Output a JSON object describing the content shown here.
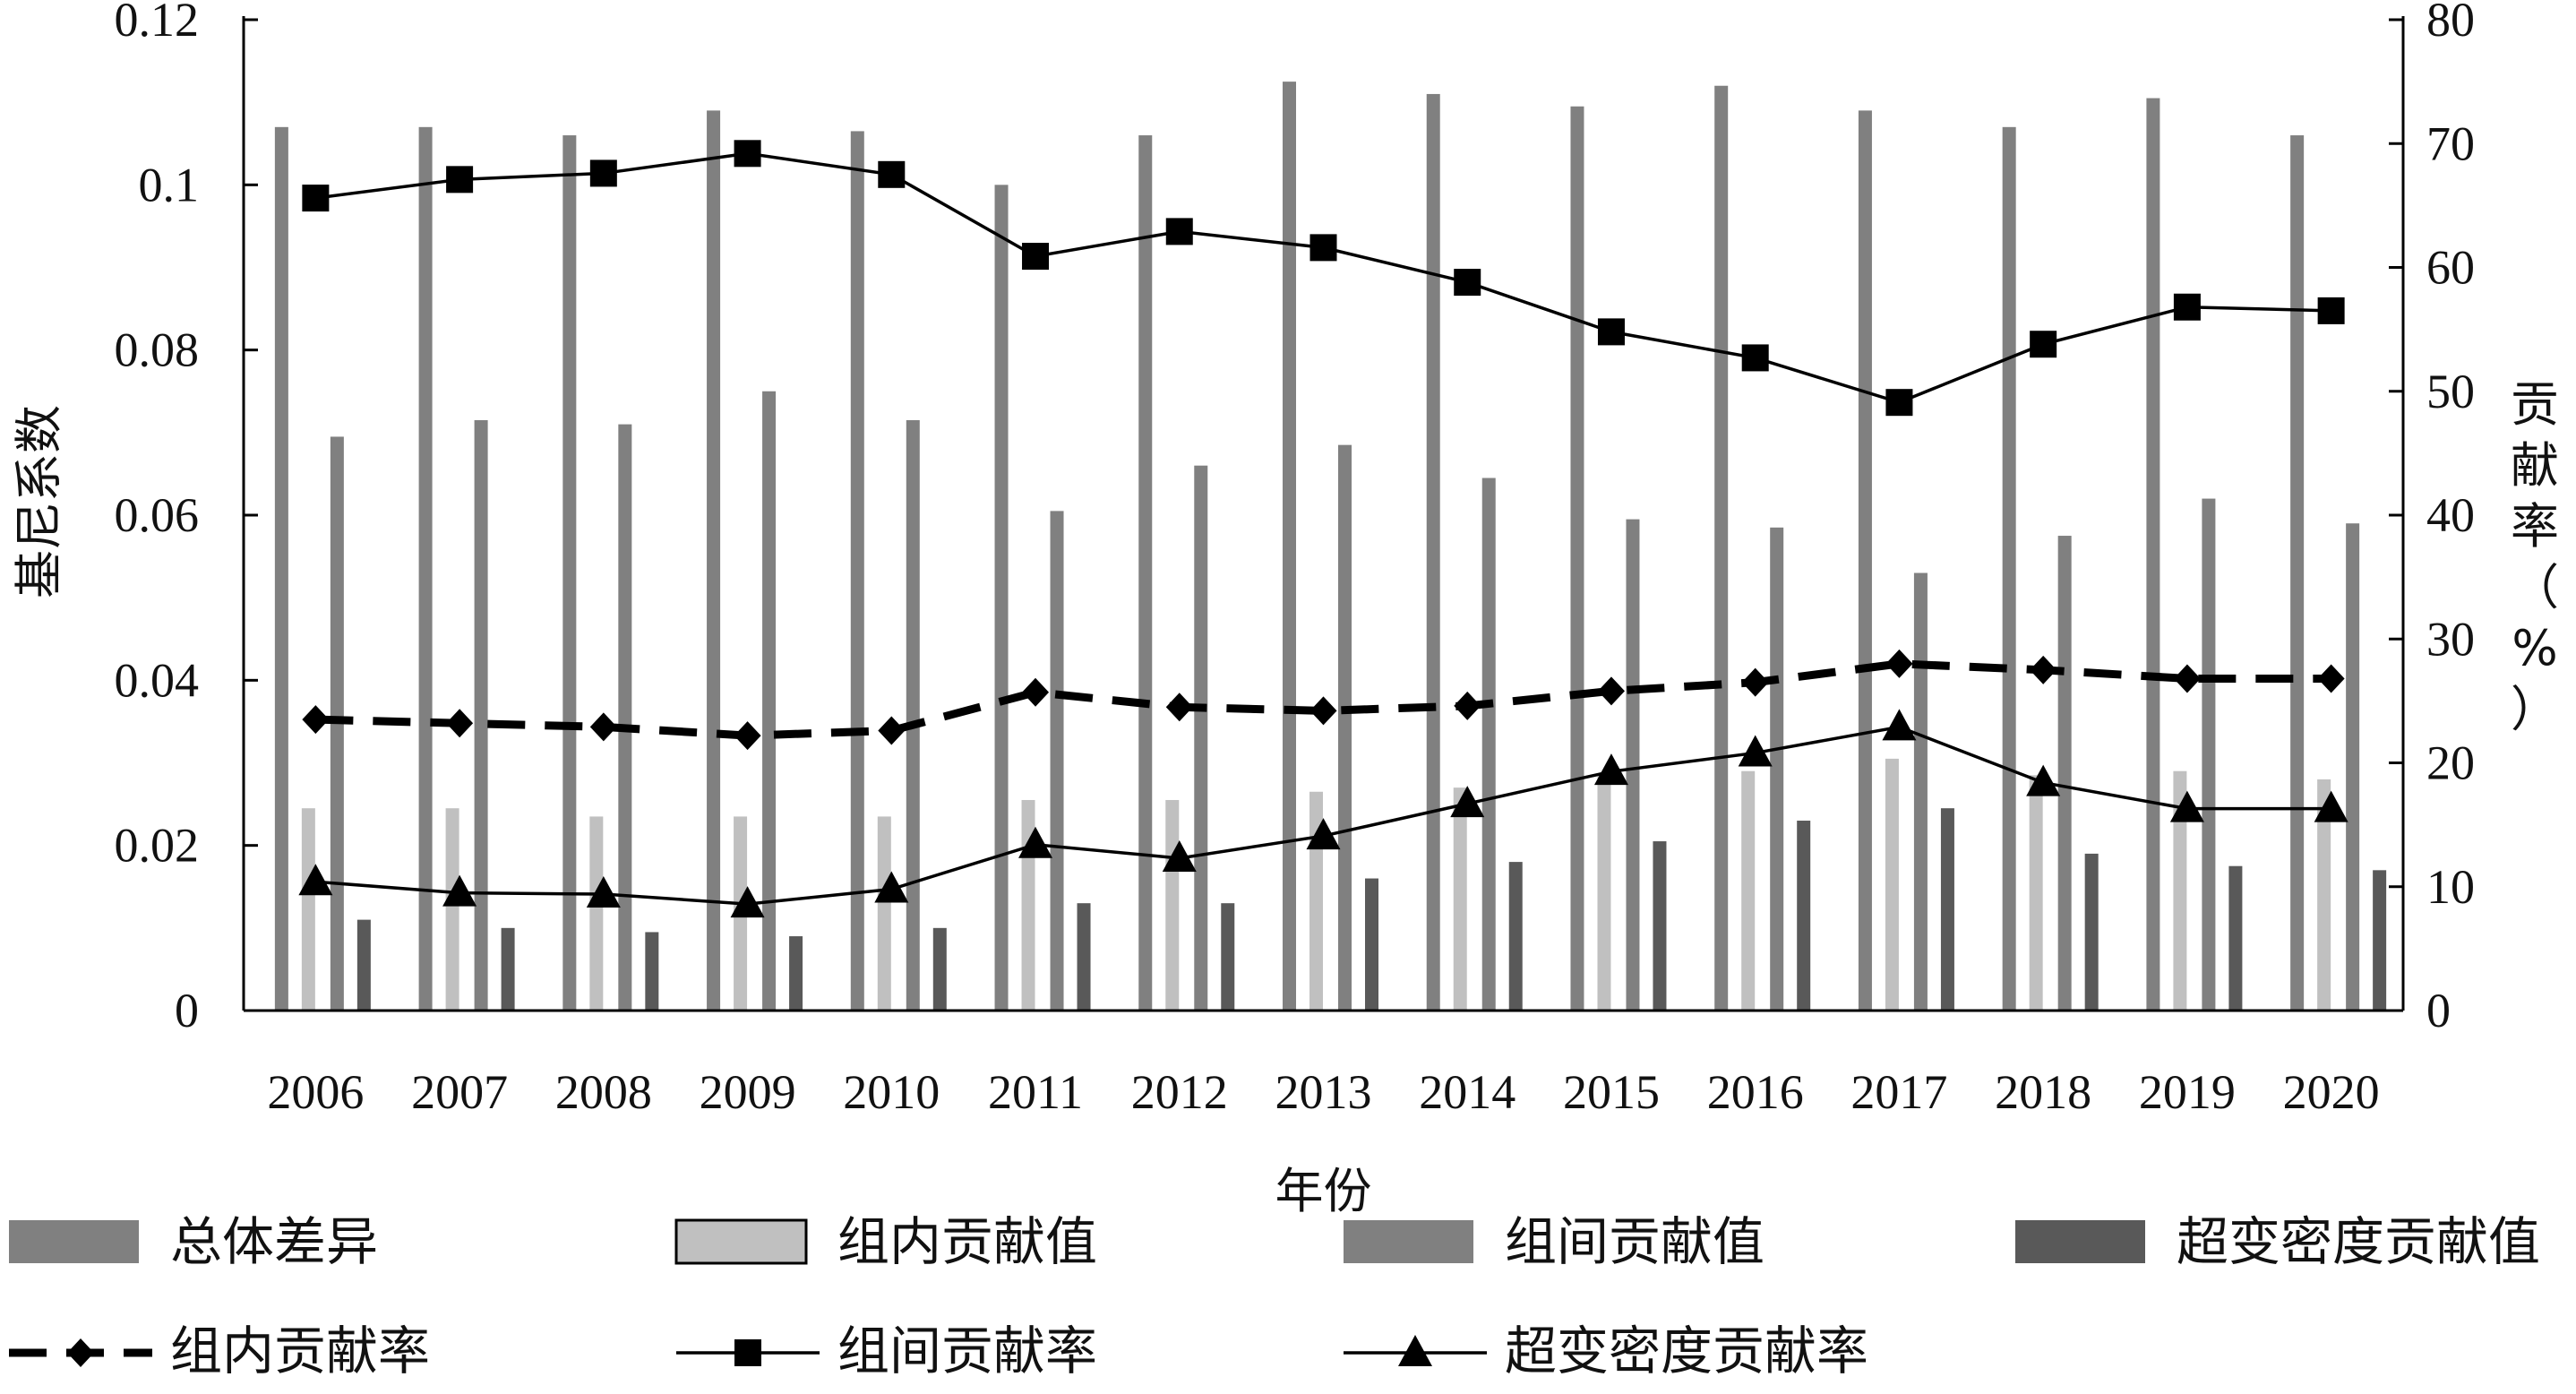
{
  "chart_data": {
    "type": "bar",
    "title": "",
    "xlabel": "年份",
    "ylabel_left": "基尼系数",
    "ylabel_right": "贡献率（%）",
    "ylim_left": [
      0,
      0.12
    ],
    "ylim_right": [
      0,
      80
    ],
    "yticks_left": [
      "0",
      "0.02",
      "0.04",
      "0.06",
      "0.08",
      "0.1",
      "0.12"
    ],
    "yticks_right": [
      "0",
      "10",
      "20",
      "30",
      "40",
      "50",
      "60",
      "70",
      "80"
    ],
    "categories": [
      "2006",
      "2007",
      "2008",
      "2009",
      "2010",
      "2011",
      "2012",
      "2013",
      "2014",
      "2015",
      "2016",
      "2017",
      "2018",
      "2019",
      "2020"
    ],
    "bar_series": [
      {
        "name": "总体差异",
        "color": "#808080",
        "values": [
          0.107,
          0.107,
          0.106,
          0.109,
          0.1065,
          0.1,
          0.106,
          0.1125,
          0.111,
          0.1095,
          0.112,
          0.109,
          0.107,
          0.1105,
          0.106
        ]
      },
      {
        "name": "组内贡献值",
        "color": "#c0c0c0",
        "values": [
          0.0245,
          0.0245,
          0.0235,
          0.0235,
          0.0235,
          0.0255,
          0.0255,
          0.0265,
          0.027,
          0.0285,
          0.029,
          0.0305,
          0.0285,
          0.029,
          0.028
        ]
      },
      {
        "name": "组间贡献值",
        "color": "#808080",
        "values": [
          0.0695,
          0.0715,
          0.071,
          0.075,
          0.0715,
          0.0605,
          0.066,
          0.0685,
          0.0645,
          0.0595,
          0.0585,
          0.053,
          0.0575,
          0.062,
          0.059
        ]
      },
      {
        "name": "超变密度贡献值",
        "color": "#595959",
        "values": [
          0.011,
          0.01,
          0.0095,
          0.009,
          0.01,
          0.013,
          0.013,
          0.016,
          0.018,
          0.0205,
          0.023,
          0.0245,
          0.019,
          0.0175,
          0.017
        ]
      }
    ],
    "line_series": [
      {
        "name": "组内贡献率",
        "marker": "diamond",
        "style": "dashed",
        "values": [
          23.5,
          23.2,
          22.9,
          22.2,
          22.6,
          25.7,
          24.5,
          24.2,
          24.6,
          25.8,
          26.5,
          28.0,
          27.5,
          26.8,
          26.8
        ]
      },
      {
        "name": "组间贡献率",
        "marker": "square",
        "style": "solid",
        "values": [
          65.6,
          67.1,
          67.6,
          69.2,
          67.5,
          60.9,
          62.9,
          61.6,
          58.8,
          54.8,
          52.7,
          49.1,
          53.8,
          56.8,
          56.5
        ]
      },
      {
        "name": "超变密度贡献率",
        "marker": "triangle",
        "style": "solid",
        "values": [
          10.4,
          9.5,
          9.4,
          8.6,
          9.8,
          13.4,
          12.3,
          14.1,
          16.7,
          19.3,
          20.8,
          22.9,
          18.4,
          16.3,
          16.3
        ]
      }
    ]
  }
}
